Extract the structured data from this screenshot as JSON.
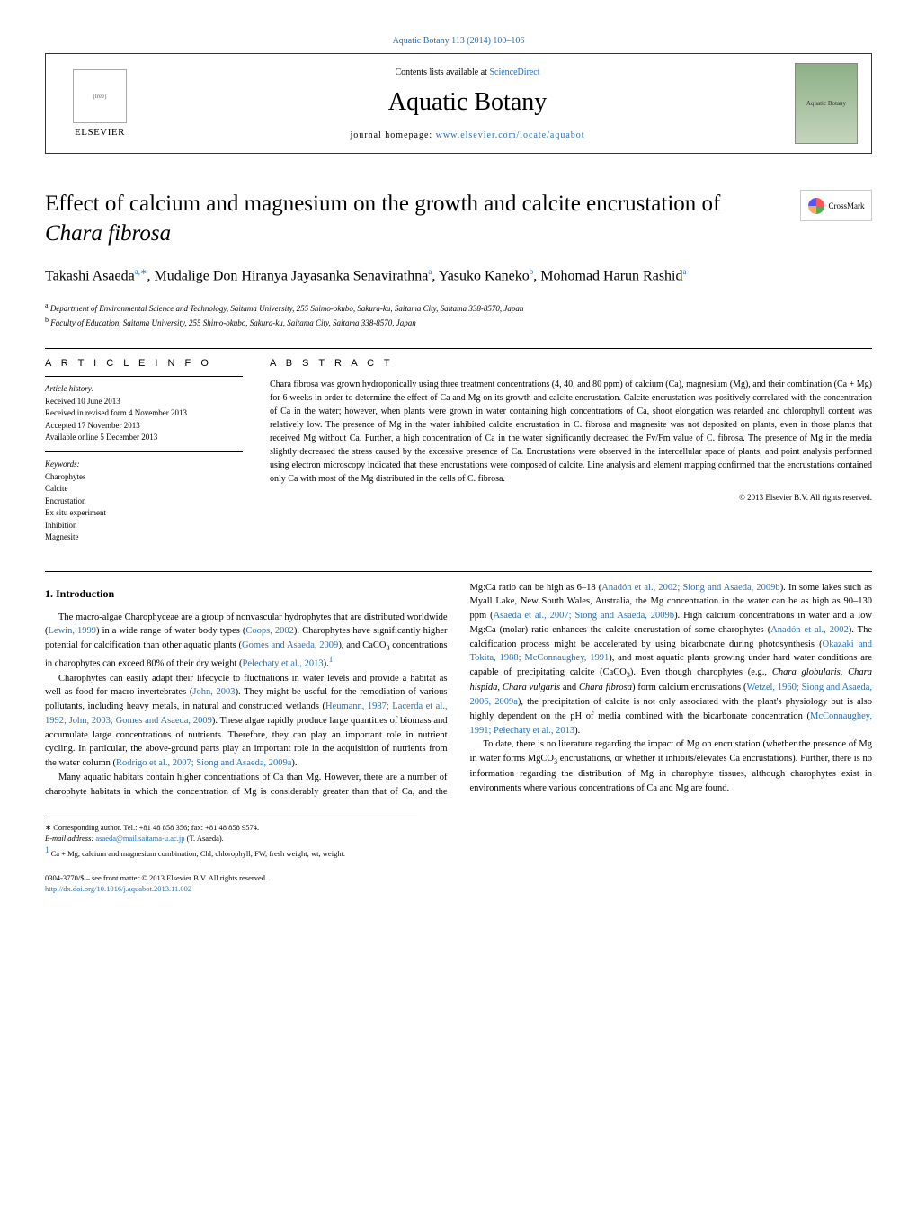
{
  "citation": "Aquatic Botany 113 (2014) 100–106",
  "header": {
    "contents_text": "Contents lists available at ",
    "sciencedirect": "ScienceDirect",
    "journal_title": "Aquatic Botany",
    "homepage_label": "journal homepage: ",
    "homepage_url": "www.elsevier.com/locate/aquabot",
    "elsevier": "ELSEVIER",
    "cover_text": "Aquatic Botany"
  },
  "article": {
    "title_part1": "Effect of calcium and magnesium on the growth and calcite encrustation of ",
    "title_italic": "Chara fibrosa",
    "crossmark": "CrossMark"
  },
  "authors": {
    "a1_name": "Takashi Asaeda",
    "a1_sup": "a,∗",
    "a2_name": "Mudalige Don Hiranya Jayasanka Senavirathna",
    "a2_sup": "a",
    "a3_name": "Yasuko Kaneko",
    "a3_sup": "b",
    "a4_name": "Mohomad Harun Rashid",
    "a4_sup": "a"
  },
  "affiliations": {
    "a": "Department of Environmental Science and Technology, Saitama University, 255 Shimo-okubo, Sakura-ku, Saitama City, Saitama 338-8570, Japan",
    "b": "Faculty of Education, Saitama University, 255 Shimo-okubo, Sakura-ku, Saitama City, Saitama 338-8570, Japan"
  },
  "article_info": {
    "heading": "A R T I C L E   I N F O",
    "history_label": "Article history:",
    "received": "Received 10 June 2013",
    "revised": "Received in revised form 4 November 2013",
    "accepted": "Accepted 17 November 2013",
    "online": "Available online 5 December 2013",
    "keywords_label": "Keywords:",
    "keywords": [
      "Charophytes",
      "Calcite",
      "Encrustation",
      "Ex situ experiment",
      "Inhibition",
      "Magnesite"
    ]
  },
  "abstract": {
    "heading": "A B S T R A C T",
    "text": "Chara fibrosa was grown hydroponically using three treatment concentrations (4, 40, and 80 ppm) of calcium (Ca), magnesium (Mg), and their combination (Ca + Mg) for 6 weeks in order to determine the effect of Ca and Mg on its growth and calcite encrustation. Calcite encrustation was positively correlated with the concentration of Ca in the water; however, when plants were grown in water containing high concentrations of Ca, shoot elongation was retarded and chlorophyll content was relatively low. The presence of Mg in the water inhibited calcite encrustation in C. fibrosa and magnesite was not deposited on plants, even in those plants that received Mg without Ca. Further, a high concentration of Ca in the water significantly decreased the Fv/Fm value of C. fibrosa. The presence of Mg in the media slightly decreased the stress caused by the excessive presence of Ca. Encrustations were observed in the intercellular space of plants, and point analysis performed using electron microscopy indicated that these encrustations were composed of calcite. Line analysis and element mapping confirmed that the encrustations contained only Ca with most of the Mg distributed in the cells of C. fibrosa.",
    "copyright": "© 2013 Elsevier B.V. All rights reserved."
  },
  "body": {
    "section1_heading": "1. Introduction",
    "p1_a": "The macro-algae Charophyceae are a group of nonvascular hydrophytes that are distributed worldwide (",
    "p1_c1": "Lewin, 1999",
    "p1_b": ") in a wide range of water body types (",
    "p1_c2": "Coops, 2002",
    "p1_c": "). Charophytes have significantly higher potential for calcification than other aquatic plants (",
    "p1_c3": "Gomes and Asaeda, 2009",
    "p1_d": "), and CaCO",
    "p1_sub": "3",
    "p1_e": " concentrations in charophytes can exceed 80% of their dry weight (",
    "p1_c4": "Pełechaty et al., 2013",
    "p1_f": ").",
    "p1_fn": "1",
    "p2_a": "Charophytes can easily adapt their lifecycle to fluctuations in water levels and provide a habitat as well as food for macro-invertebrates (",
    "p2_c1": "John, 2003",
    "p2_b": "). They might be useful for the remediation of various pollutants, including heavy metals, in natural and constructed wetlands (",
    "p2_c2": "Heumann, 1987; Lacerda et al., 1992; John, 2003; Gomes and Asaeda, 2009",
    "p2_c": "). These algae rapidly produce large quantities of biomass and accumulate large concentrations of nutrients. Therefore, they can play an important role in nutrient cycling. In particular, the above-ground parts play an important role in the acquisition of nutrients from the water column (",
    "p2_c3": "Rodrigo et al., 2007; Siong and Asaeda, 2009a",
    "p2_d": ").",
    "p3_a": "Many aquatic habitats contain higher concentrations of Ca than Mg. However, there are a number of charophyte habitats in which the concentration of Mg is considerably greater than that of Ca, and the Mg:Ca ratio can be high as 6–18 (",
    "p3_c1": "Anadón et al., 2002; Siong and Asaeda, 2009b",
    "p3_b": "). In some lakes such as Myall Lake, New South Wales, Australia, the Mg concentration in the water can be as high as 90–130 ppm (",
    "p3_c2": "Asaeda et al., 2007; Siong and Asaeda, 2009b",
    "p3_c": "). High calcium concentrations in water and a low Mg:Ca (molar) ratio enhances the calcite encrustation of some charophytes (",
    "p3_c3": "Anadón et al., 2002",
    "p3_d": "). The calcification process might be accelerated by using bicarbonate during photosynthesis (",
    "p3_c4": "Okazaki and Tokita, 1988; McConnaughey, 1991",
    "p3_e": "), and most aquatic plants growing under hard water conditions are capable of precipitating calcite (CaCO",
    "p3_sub": "3",
    "p3_f": "). Even though charophytes (e.g., ",
    "p3_i1": "Chara globularis",
    "p3_g": ", ",
    "p3_i2": "Chara hispida",
    "p3_h": ", ",
    "p3_i3": "Chara vulgaris",
    "p3_i": " and ",
    "p3_i4": "Chara fibrosa",
    "p3_j": ") form calcium encrustations (",
    "p3_c5": "Wetzel, 1960; Siong and Asaeda, 2006, 2009a",
    "p3_k": "), the precipitation of calcite is not only associated with the plant's physiology but is also highly dependent on the pH of media combined with the bicarbonate concentration (",
    "p3_c6": "McConnaughey, 1991; Pełechaty et al., 2013",
    "p3_l": ").",
    "p4_a": "To date, there is no literature regarding the impact of Mg on encrustation (whether the presence of Mg in water forms MgCO",
    "p4_sub": "3",
    "p4_b": " encrustations, or whether it inhibits/elevates Ca encrustations). Further, there is no information regarding the distribution of Mg in charophyte tissues, although charophytes exist in environments where various concentrations of Ca and Mg are found."
  },
  "footnotes": {
    "corresp": "∗ Corresponding author. Tel.: +81 48 858 356; fax: +81 48 858 9574.",
    "email_label": "E-mail address: ",
    "email": "asaeda@mail.saitama-u.ac.jp",
    "email_suffix": " (T. Asaeda).",
    "fn1": "Ca + Mg, calcium and magnesium combination; Chl, chlorophyll; FW, fresh weight; wt, weight.",
    "fn1_sup": "1"
  },
  "footer": {
    "issn": "0304-3770/$ – see front matter © 2013 Elsevier B.V. All rights reserved.",
    "doi": "http://dx.doi.org/10.1016/j.aquabot.2013.11.002"
  }
}
